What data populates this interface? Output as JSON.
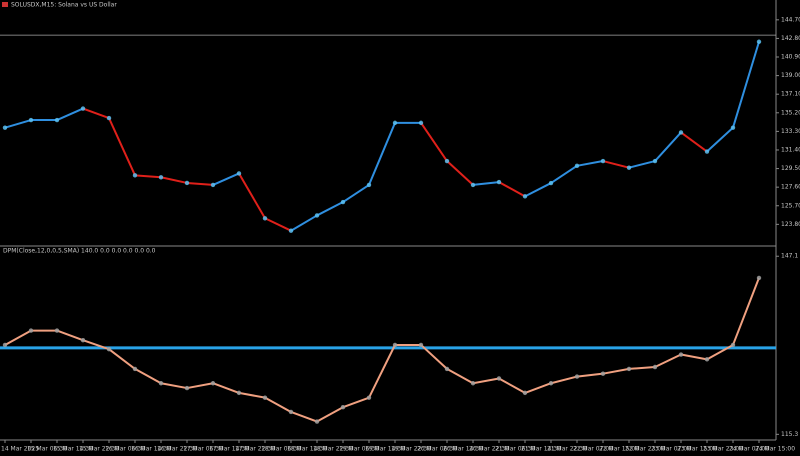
{
  "chart_data": [
    {
      "type": "line",
      "title": "SOLUSDX,M15: Solana vs US Dollar",
      "categories": [
        "14 Mar 2025",
        "15 Mar 06:30",
        "15 Mar 14:30",
        "15 Mar 22:30",
        "16 Mar 06:30",
        "16 Mar 14:30",
        "16 Mar 22:30",
        "17 Mar 06:30",
        "17 Mar 14:30",
        "17 Mar 22:30",
        "18 Mar 06:30",
        "18 Mar 14:30",
        "18 Mar 22:30",
        "19 Mar 06:30",
        "19 Mar 14:30",
        "19 Mar 22:30",
        "20 Mar 06:30",
        "20 Mar 14:30",
        "20 Mar 22:30",
        "21 Mar 06:30",
        "21 Mar 14:30",
        "21 Mar 22:30",
        "22 Mar 07:00",
        "22 Mar 15:00",
        "22 Mar 23:00",
        "23 Mar 07:00",
        "23 Mar 15:00",
        "23 Mar 23:00",
        "24 Mar 07:00",
        "24 Mar 15:00"
      ],
      "values": [
        133.68,
        134.46,
        134.46,
        135.63,
        134.66,
        128.81,
        128.61,
        128.03,
        127.83,
        129.0,
        124.42,
        123.15,
        124.71,
        126.08,
        127.83,
        134.17,
        134.17,
        130.27,
        127.83,
        128.12,
        126.66,
        128.02,
        129.78,
        130.27,
        129.59,
        130.27,
        133.19,
        131.24,
        133.68,
        142.46
      ],
      "up_color": "#2f8fe0",
      "down_color": "#e0201a",
      "current_price": 143.14,
      "ylim": [
        122.2,
        145.5
      ],
      "yticks": [
        {
          "value": 144.7,
          "label": "144.70"
        },
        {
          "value": 142.8,
          "label": "142.80"
        },
        {
          "value": 140.9,
          "label": "140.90"
        },
        {
          "value": 139,
          "label": "139.00"
        },
        {
          "value": 137.1,
          "label": "137.10"
        },
        {
          "value": 135.2,
          "label": "135.20"
        },
        {
          "value": 133.3,
          "label": "133.30"
        },
        {
          "value": 131.4,
          "label": "131.40"
        },
        {
          "value": 129.5,
          "label": "129.50"
        },
        {
          "value": 127.6,
          "label": "127.60"
        },
        {
          "value": 125.7,
          "label": "125.70"
        },
        {
          "value": 123.8,
          "label": "123.80"
        }
      ]
    },
    {
      "type": "line",
      "title": "DPM(Close,12,0,0,5,SMA) 140.0 0.0 0.0 0.0 0.0 0.0",
      "values": [
        131.26,
        133.82,
        133.82,
        132.11,
        130.5,
        126.98,
        124.42,
        123.56,
        124.42,
        122.7,
        121.85,
        119.29,
        117.58,
        120.14,
        121.85,
        131.26,
        131.26,
        126.98,
        124.42,
        125.27,
        122.7,
        124.42,
        125.61,
        126.13,
        126.98,
        127.32,
        129.55,
        128.69,
        131.26,
        143.23
      ],
      "color": "#f0a080",
      "signal_level": 130.74,
      "signal_color": "#29a3e8",
      "ylim": [
        115,
        147.5
      ],
      "yticks": [
        147.1,
        115.3
      ]
    }
  ]
}
